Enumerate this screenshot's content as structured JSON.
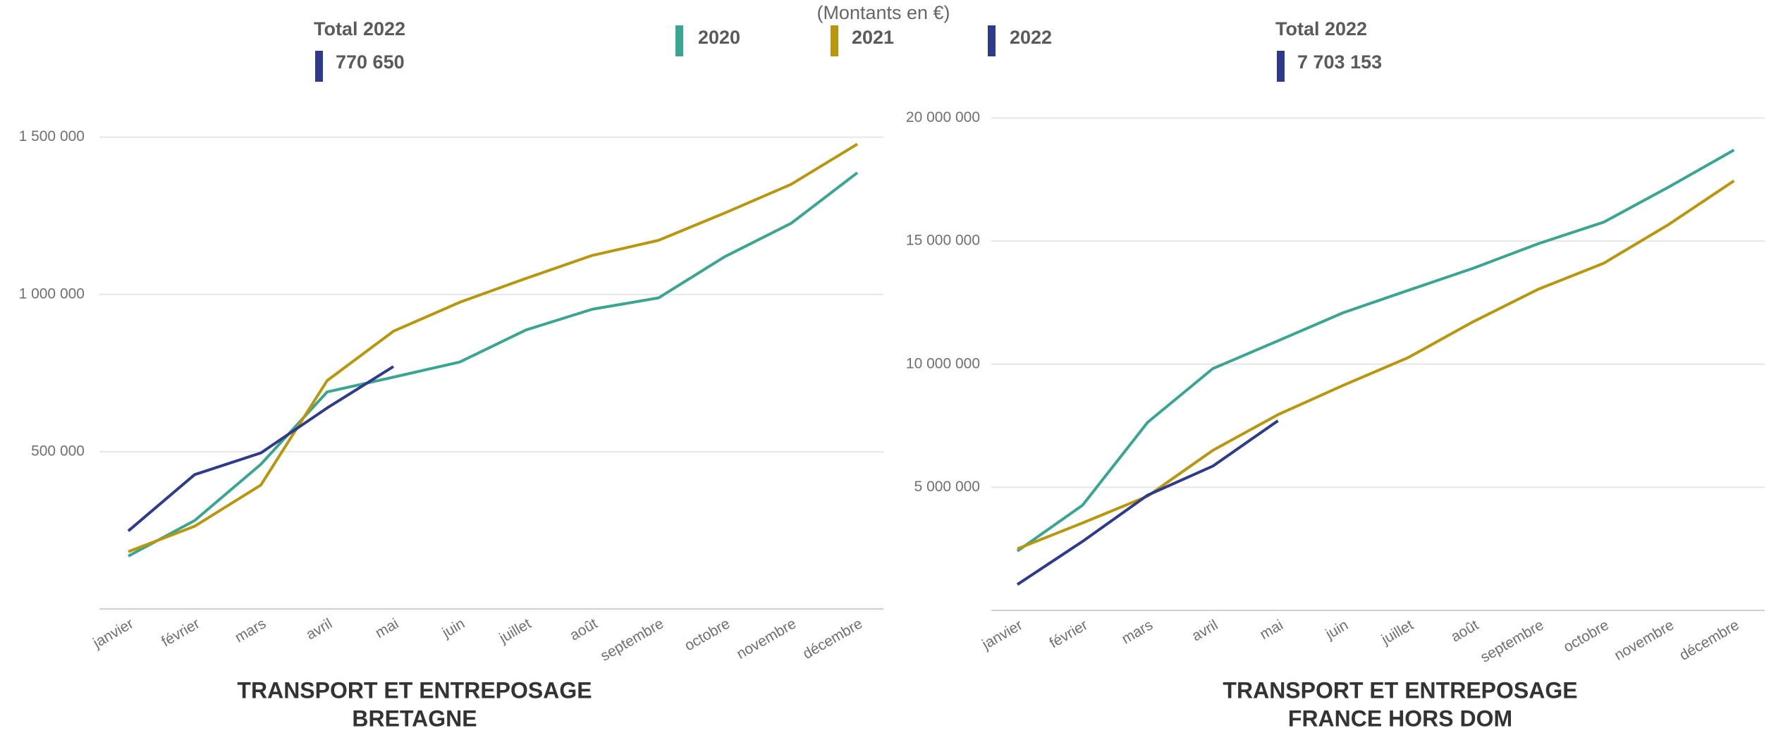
{
  "note": "(Montants en €)",
  "chart_data": [
    {
      "type": "line",
      "title": "TRANSPORT ET ENTREPOSAGE",
      "subtitle": "BRETAGNE",
      "total": {
        "label": "Total 2022",
        "value": "770 650"
      },
      "categories": [
        "janvier",
        "février",
        "mars",
        "avril",
        "mai",
        "juin",
        "juillet",
        "août",
        "septembre",
        "octobre",
        "novembre",
        "décembre"
      ],
      "ylim": [
        0,
        1600000
      ],
      "yticks": [
        {
          "value": 500000,
          "label": "500 000"
        },
        {
          "value": 1000000,
          "label": "1 000 000"
        },
        {
          "value": 1500000,
          "label": "1 500 000"
        }
      ],
      "grid": true,
      "series": [
        {
          "name": "2020",
          "color": "#3aa590",
          "values": [
            168000,
            281000,
            460000,
            690000,
            737000,
            785000,
            887000,
            953000,
            989000,
            1120000,
            1226000,
            1387000
          ]
        },
        {
          "name": "2021",
          "color": "#b8970f",
          "values": [
            182000,
            263000,
            394000,
            726000,
            883000,
            975000,
            1051000,
            1124000,
            1172000,
            1259000,
            1350000,
            1478000
          ]
        },
        {
          "name": "2022",
          "color": "#2e3a8c",
          "values": [
            248000,
            427000,
            496000,
            639000,
            770650,
            null,
            null,
            null,
            null,
            null,
            null,
            null
          ]
        }
      ]
    },
    {
      "type": "line",
      "title": "TRANSPORT ET ENTREPOSAGE",
      "subtitle": "FRANCE HORS DOM",
      "total": {
        "label": "Total 2022",
        "value": "7 703 153"
      },
      "categories": [
        "janvier",
        "février",
        "mars",
        "avril",
        "mai",
        "juin",
        "juillet",
        "août",
        "septembre",
        "octobre",
        "novembre",
        "décembre"
      ],
      "ylim": [
        0,
        20500000
      ],
      "yticks": [
        {
          "value": 5000000,
          "label": "5 000 000"
        },
        {
          "value": 10000000,
          "label": "10 000 000"
        },
        {
          "value": 15000000,
          "label": "15 000 000"
        },
        {
          "value": 20000000,
          "label": "20 000 000"
        }
      ],
      "grid": true,
      "series": [
        {
          "color": "#3aa590",
          "values": [
            2410000,
            4270000,
            7640000,
            9820000,
            10950000,
            12090000,
            13000000,
            13900000,
            14900000,
            15770000,
            17200000,
            18700000
          ]
        },
        {
          "color": "#b8970f",
          "values": [
            2500000,
            3550000,
            4640000,
            6500000,
            7950000,
            9140000,
            10270000,
            11730000,
            13050000,
            14100000,
            15680000,
            17450000
          ]
        },
        {
          "color": "#2e3a8c",
          "values": [
            1050000,
            2800000,
            4680000,
            5860000,
            7703153,
            null,
            null,
            null,
            null,
            null,
            null,
            null
          ]
        }
      ]
    }
  ]
}
